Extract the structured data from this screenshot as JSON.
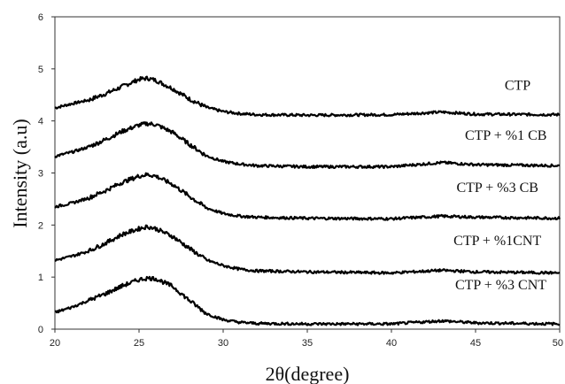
{
  "chart_data": {
    "type": "line",
    "title": "",
    "xlabel": "2θ(degree)",
    "ylabel": "Intensity (a.u)",
    "xlim": [
      20,
      50
    ],
    "ylim": [
      0,
      6
    ],
    "xticks": [
      20,
      25,
      30,
      35,
      40,
      45,
      50
    ],
    "yticks": [
      0,
      1,
      2,
      3,
      4,
      5,
      6
    ],
    "grid": false,
    "legend": "none",
    "series": [
      {
        "name": "CTP",
        "label_at": [
          47.5,
          4.68
        ],
        "x": [
          20,
          21,
          22,
          23,
          24,
          25,
          25.5,
          26,
          27,
          28,
          29,
          30,
          31,
          32,
          35,
          40,
          43,
          45,
          50
        ],
        "y": [
          4.25,
          4.33,
          4.4,
          4.52,
          4.66,
          4.8,
          4.82,
          4.78,
          4.62,
          4.42,
          4.26,
          4.18,
          4.14,
          4.12,
          4.11,
          4.12,
          4.17,
          4.13,
          4.12
        ]
      },
      {
        "name": "CTP + %1 CB",
        "label_at": [
          46.8,
          3.72
        ],
        "x": [
          20,
          21,
          22,
          23,
          24,
          25,
          25.5,
          26,
          27,
          28,
          29,
          30,
          31,
          32,
          35,
          40,
          43,
          45,
          50
        ],
        "y": [
          3.32,
          3.4,
          3.5,
          3.64,
          3.8,
          3.92,
          3.95,
          3.93,
          3.78,
          3.55,
          3.33,
          3.22,
          3.17,
          3.14,
          3.12,
          3.12,
          3.2,
          3.16,
          3.14
        ]
      },
      {
        "name": "CTP + %3 CB",
        "label_at": [
          46.3,
          2.72
        ],
        "x": [
          20,
          21,
          22,
          23,
          24,
          25,
          25.5,
          26,
          27,
          28,
          29,
          30,
          31,
          32,
          35,
          40,
          43,
          45,
          50
        ],
        "y": [
          2.35,
          2.42,
          2.52,
          2.66,
          2.82,
          2.94,
          2.97,
          2.94,
          2.78,
          2.55,
          2.33,
          2.22,
          2.17,
          2.15,
          2.13,
          2.12,
          2.17,
          2.15,
          2.13
        ]
      },
      {
        "name": "CTP + %1CNT",
        "label_at": [
          46.3,
          1.7
        ],
        "x": [
          20,
          21,
          22,
          23,
          24,
          25,
          25.5,
          26,
          27,
          28,
          29,
          30,
          31,
          32,
          35,
          40,
          43,
          45,
          50
        ],
        "y": [
          1.32,
          1.4,
          1.5,
          1.65,
          1.82,
          1.93,
          1.97,
          1.93,
          1.78,
          1.55,
          1.33,
          1.22,
          1.15,
          1.12,
          1.1,
          1.08,
          1.13,
          1.1,
          1.08
        ]
      },
      {
        "name": "CTP + %3 CNT",
        "label_at": [
          46.5,
          0.85
        ],
        "x": [
          20,
          21,
          22,
          23,
          24,
          25,
          25.5,
          26,
          27,
          28,
          29,
          30,
          31,
          32,
          35,
          40,
          43,
          45,
          50
        ],
        "y": [
          0.32,
          0.42,
          0.55,
          0.68,
          0.83,
          0.95,
          0.98,
          0.97,
          0.82,
          0.55,
          0.3,
          0.18,
          0.13,
          0.11,
          0.1,
          0.1,
          0.16,
          0.12,
          0.1
        ]
      }
    ]
  }
}
